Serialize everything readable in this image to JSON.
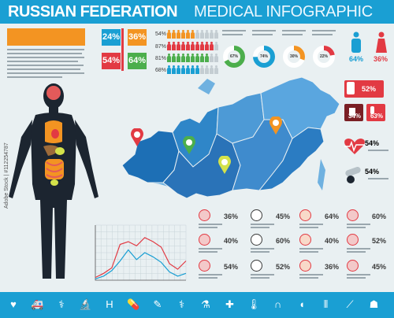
{
  "header": {
    "title_bold": "RUSSIAN FEDERATION",
    "title_light": "MEDICAL INFOGRAPHIC"
  },
  "top_boxes": [
    {
      "value": "24%",
      "color": "#1a9fd3"
    },
    {
      "value": "36%",
      "color": "#f39422"
    },
    {
      "value": "54%",
      "color": "#e23a43"
    },
    {
      "value": "64%",
      "color": "#4cae4c"
    }
  ],
  "people_rows": [
    {
      "value": "54%",
      "color": "#f39422",
      "fraction": 0.54
    },
    {
      "value": "87%",
      "color": "#e23a43",
      "fraction": 0.87
    },
    {
      "value": "81%",
      "color": "#4cae4c",
      "fraction": 0.81
    },
    {
      "value": "68%",
      "color": "#1a9fd3",
      "fraction": 0.68
    }
  ],
  "donuts": [
    {
      "value": "67%",
      "fraction": 0.67,
      "color": "#4cae4c"
    },
    {
      "value": "74%",
      "fraction": 0.74,
      "color": "#1a9fd3"
    },
    {
      "value": "30%",
      "fraction": 0.3,
      "color": "#f39422"
    },
    {
      "value": "22%",
      "fraction": 0.22,
      "color": "#e23a43"
    }
  ],
  "gender": {
    "male": "64%",
    "female": "36%"
  },
  "right_stats": [
    {
      "value": "52%",
      "color": "#e23a43"
    },
    {
      "value": "34%",
      "color": "#e23a43"
    },
    {
      "value": "63%",
      "color": "#e23a43"
    },
    {
      "value": "54%",
      "color": "#3a3a3a"
    },
    {
      "value": "54%",
      "color": "#3a3a3a"
    }
  ],
  "organ_stats": [
    {
      "value": "36%",
      "icon": "brain-icon"
    },
    {
      "value": "45%",
      "icon": "thermometer-icon"
    },
    {
      "value": "64%",
      "icon": "lungs-icon"
    },
    {
      "value": "60%",
      "icon": "kidney-icon"
    },
    {
      "value": "40%",
      "icon": "kidneys-icon"
    },
    {
      "value": "60%",
      "icon": "heart-icon"
    },
    {
      "value": "40%",
      "icon": "bone-icon"
    },
    {
      "value": "52%",
      "icon": "stomach-icon"
    },
    {
      "value": "54%",
      "icon": "uterus-icon"
    },
    {
      "value": "52%",
      "icon": "intestine-icon"
    },
    {
      "value": "36%",
      "icon": "thyroid-icon"
    },
    {
      "value": "45%",
      "icon": "liver-icon"
    }
  ],
  "chart_data": {
    "type": "line",
    "x": [
      1,
      2,
      3,
      4,
      5,
      6,
      7,
      8,
      9,
      10,
      11,
      12
    ],
    "series": [
      {
        "color": "#e23a43",
        "values": [
          2,
          5,
          9,
          26,
          28,
          25,
          31,
          28,
          24,
          12,
          8,
          14
        ]
      },
      {
        "color": "#1a9fd3",
        "values": [
          1,
          3,
          7,
          14,
          22,
          15,
          20,
          17,
          13,
          6,
          3,
          5
        ]
      }
    ],
    "ylim": [
      0,
      40
    ],
    "grid": true
  },
  "map_pins": [
    {
      "color": "#e23a43"
    },
    {
      "color": "#4cae4c"
    },
    {
      "color": "#f39422"
    },
    {
      "color": "#d4e24a"
    }
  ],
  "watermark": "Adobe Stock | #112254787",
  "bottom_icons": [
    {
      "name": "heartbeat-icon",
      "glyph": "♥"
    },
    {
      "name": "ambulance-icon",
      "glyph": "🚑"
    },
    {
      "name": "medicine-bottle-icon",
      "glyph": "⚕"
    },
    {
      "name": "microscope-icon",
      "glyph": "🔬"
    },
    {
      "name": "hospital-icon",
      "glyph": "H"
    },
    {
      "name": "pill-icon",
      "glyph": "💊"
    },
    {
      "name": "syringe-icon",
      "glyph": "✎"
    },
    {
      "name": "caduceus-icon",
      "glyph": "⚕"
    },
    {
      "name": "flask-icon",
      "glyph": "⚗"
    },
    {
      "name": "first-aid-kit-icon",
      "glyph": "✚"
    },
    {
      "name": "thermometer-icon",
      "glyph": "🌡"
    },
    {
      "name": "stethoscope-icon",
      "glyph": "∩"
    },
    {
      "name": "capsule-icon",
      "glyph": "◖"
    },
    {
      "name": "test-tubes-icon",
      "glyph": "⫴"
    },
    {
      "name": "injection-icon",
      "glyph": "⟋"
    },
    {
      "name": "tooth-icon",
      "glyph": "☗"
    }
  ]
}
